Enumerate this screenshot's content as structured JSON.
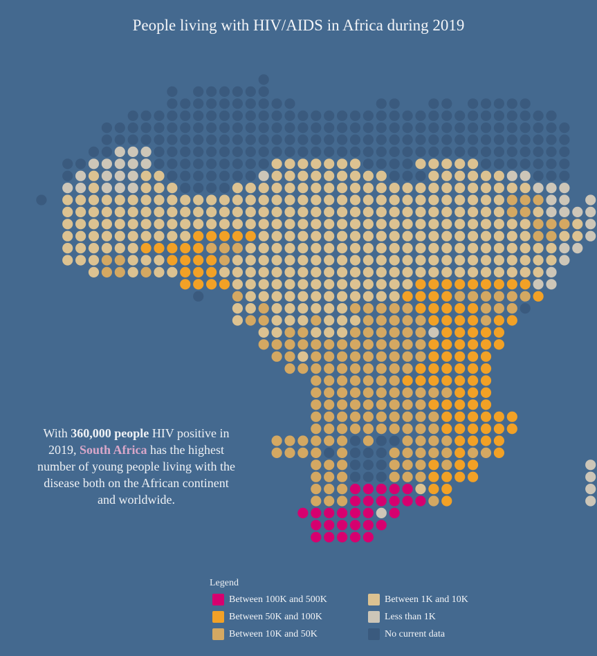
{
  "title": "People living with HIV/AIDS in Africa during 2019",
  "callout": {
    "pre": "With ",
    "bold": "360,000 people",
    "mid": " HIV positive in 2019, ",
    "country": "South Africa",
    "post": " has the highest number of young people living with the disease both on the African continent and worldwide."
  },
  "legend": {
    "title": "Legend",
    "items": [
      {
        "label": "Between 100K and 500K",
        "color": "#d6006f"
      },
      {
        "label": "Between 50K and 100K",
        "color": "#f2a126"
      },
      {
        "label": "Between 10K and 50K",
        "color": "#d4a862"
      },
      {
        "label": "Between 1K and 10K",
        "color": "#dcc291"
      },
      {
        "label": "Less than 1K",
        "color": "#cdc6b8"
      },
      {
        "label": "No current data",
        "color": "#3a5a7e"
      }
    ]
  },
  "colors": {
    "background": "#44698f",
    "H": "#d6006f",
    "O": "#f2a126",
    "T": "#d4a862",
    "B": "#dcc291",
    "L": "#cdc6b8",
    "N": "#3a5a7e"
  }
}
